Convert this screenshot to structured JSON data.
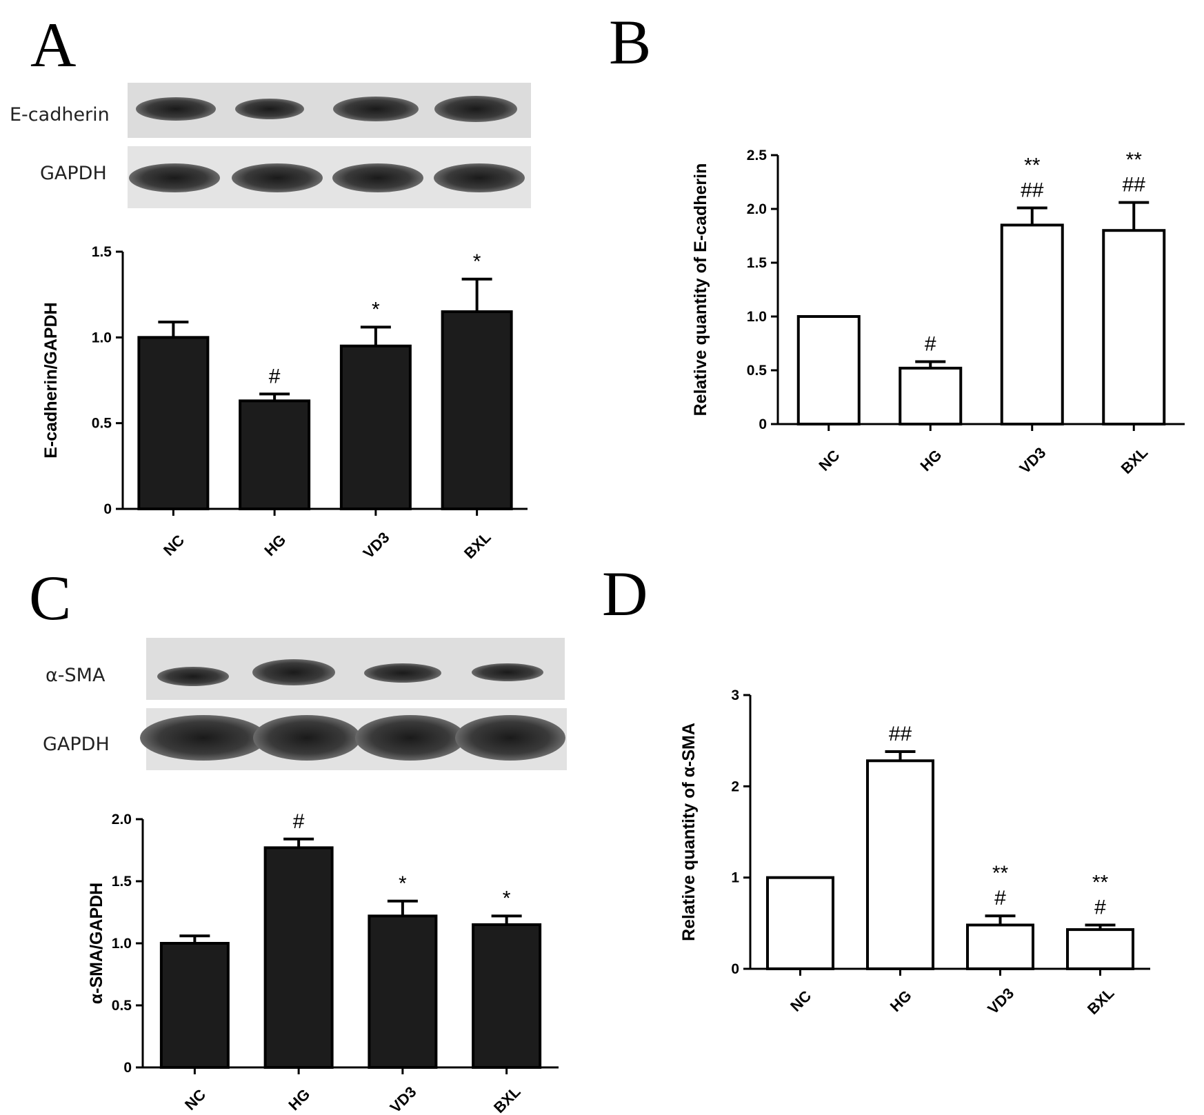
{
  "panels": {
    "A": {
      "letter": "A",
      "blot_labels": [
        "E-cadherin",
        "GAPDH"
      ]
    },
    "B": {
      "letter": "B"
    },
    "C": {
      "letter": "C",
      "blot_labels": [
        "α-SMA",
        "GAPDH"
      ]
    },
    "D": {
      "letter": "D"
    }
  },
  "chart_data": [
    {
      "panel": "A",
      "type": "bar",
      "bar_fill": "#1c1c1c",
      "categories": [
        "NC",
        "HG",
        "VD3",
        "BXL"
      ],
      "values": [
        1.0,
        0.63,
        0.95,
        1.15
      ],
      "errors": [
        0.09,
        0.04,
        0.11,
        0.19
      ],
      "annotations": [
        [],
        [
          "#"
        ],
        [
          "*"
        ],
        [
          "*"
        ]
      ],
      "ylabel": "E-cadherin/GAPDH",
      "ylim": [
        0,
        1.5
      ],
      "yticks": [
        "0",
        "0.5",
        "1.0",
        "1.5"
      ],
      "ytick_values": [
        0,
        0.5,
        1.0,
        1.5
      ],
      "grid": false
    },
    {
      "panel": "B",
      "type": "bar",
      "bar_fill": "#ffffff",
      "categories": [
        "NC",
        "HG",
        "VD3",
        "BXL"
      ],
      "values": [
        1.0,
        0.52,
        1.85,
        1.8
      ],
      "errors": [
        0,
        0.06,
        0.16,
        0.26
      ],
      "annotations": [
        [],
        [
          "#"
        ],
        [
          "**",
          "##"
        ],
        [
          "**",
          "##"
        ]
      ],
      "ylabel": "Relative quantity of E-cadherin",
      "ylim": [
        0,
        2.5
      ],
      "yticks": [
        "0",
        "0.5",
        "1.0",
        "1.5",
        "2.0",
        "2.5"
      ],
      "ytick_values": [
        0,
        0.5,
        1.0,
        1.5,
        2.0,
        2.5
      ],
      "grid": false
    },
    {
      "panel": "C",
      "type": "bar",
      "bar_fill": "#1c1c1c",
      "categories": [
        "NC",
        "HG",
        "VD3",
        "BXL"
      ],
      "values": [
        1.0,
        1.77,
        1.22,
        1.15
      ],
      "errors": [
        0.06,
        0.07,
        0.12,
        0.07
      ],
      "annotations": [
        [],
        [
          "#"
        ],
        [
          "*"
        ],
        [
          "*"
        ]
      ],
      "ylabel": "α-SMA/GAPDH",
      "ylim": [
        0,
        2.0
      ],
      "yticks": [
        "0",
        "0.5",
        "1.0",
        "1.5",
        "2.0"
      ],
      "ytick_values": [
        0,
        0.5,
        1.0,
        1.5,
        2.0
      ],
      "grid": false
    },
    {
      "panel": "D",
      "type": "bar",
      "bar_fill": "#ffffff",
      "categories": [
        "NC",
        "HG",
        "VD3",
        "BXL"
      ],
      "values": [
        1.0,
        2.28,
        0.48,
        0.43
      ],
      "errors": [
        0,
        0.1,
        0.1,
        0.05
      ],
      "annotations": [
        [],
        [
          "##"
        ],
        [
          "**",
          "#"
        ],
        [
          "**",
          "#"
        ]
      ],
      "ylabel": "Relative quantity of α-SMA",
      "ylim": [
        0,
        3
      ],
      "yticks": [
        "0",
        "1",
        "2",
        "3"
      ],
      "ytick_values": [
        0,
        1,
        2,
        3
      ],
      "grid": false
    }
  ]
}
